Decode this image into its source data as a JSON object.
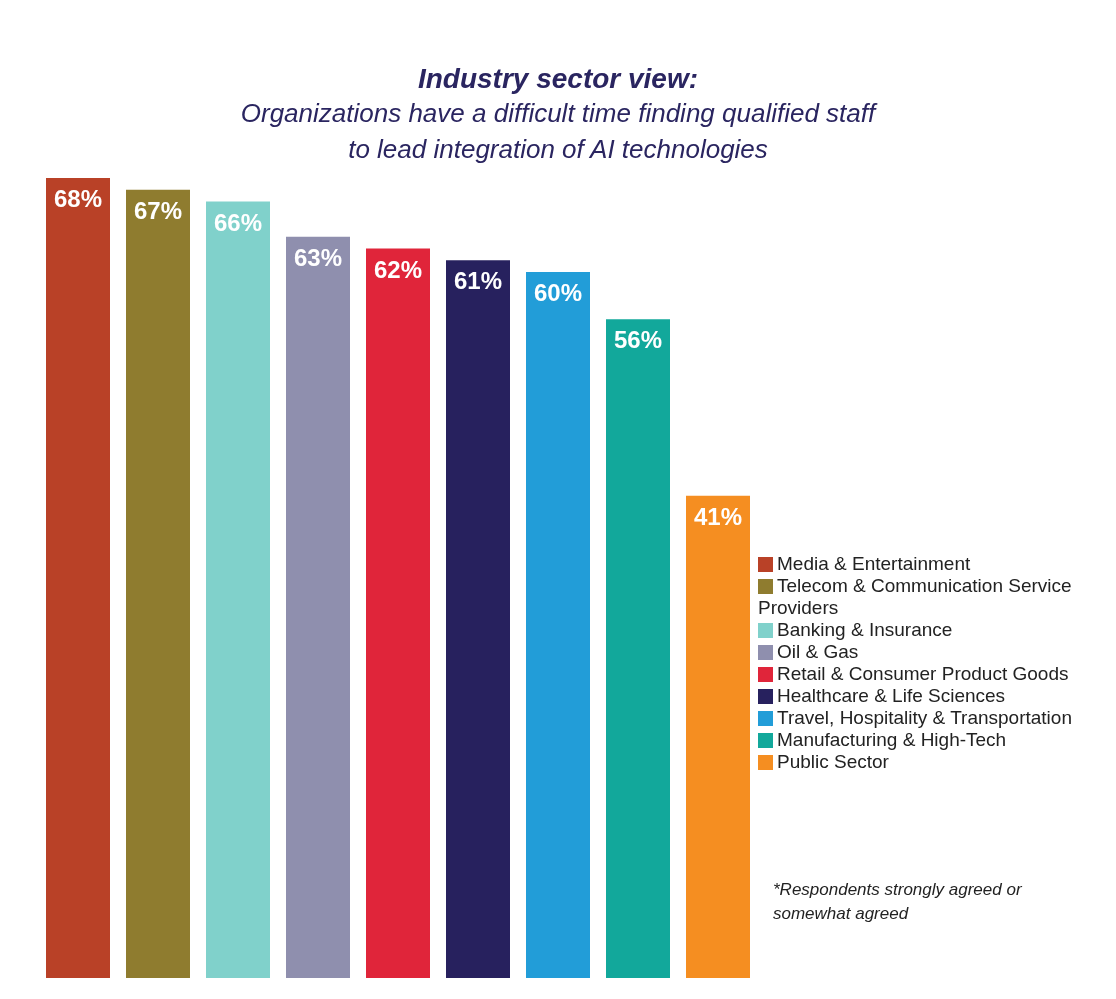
{
  "chart_data": {
    "type": "bar",
    "title": "Industry sector view:",
    "subtitle": "Organizations have a difficult time finding qualified staff to lead integration of AI technologies",
    "categories": [
      null,
      null,
      null,
      null,
      null,
      null,
      null,
      null,
      null
    ],
    "stacked": true,
    "series": [
      {
        "name": "Media & Entertainment",
        "color": "#b94127",
        "values": [
          68,
          null,
          null,
          null,
          null,
          null,
          null,
          null,
          null
        ],
        "value_labels": [
          "68%",
          null,
          null,
          null,
          null,
          null,
          null,
          null,
          null
        ]
      },
      {
        "name": "Telecom & Communication Service Providers",
        "color": "#8f7c2f",
        "values": [
          null,
          67,
          null,
          null,
          null,
          null,
          null,
          null,
          null
        ],
        "value_labels": [
          null,
          "67%",
          null,
          null,
          null,
          null,
          null,
          null,
          null
        ]
      },
      {
        "name": "Banking & Insurance",
        "color": "#80d1cb",
        "values": [
          null,
          null,
          66,
          null,
          null,
          null,
          null,
          null,
          null
        ],
        "value_labels": [
          null,
          null,
          "66%",
          null,
          null,
          null,
          null,
          null,
          null
        ]
      },
      {
        "name": "Oil & Gas",
        "color": "#8f8fae",
        "values": [
          null,
          null,
          null,
          63,
          null,
          null,
          null,
          null,
          null
        ],
        "value_labels": [
          null,
          null,
          null,
          "63%",
          null,
          null,
          null,
          null,
          null
        ]
      },
      {
        "name": "Retail & Consumer Product Goods",
        "color": "#e0253a",
        "values": [
          null,
          null,
          null,
          null,
          62,
          null,
          null,
          null,
          null
        ],
        "value_labels": [
          null,
          null,
          null,
          null,
          "62%",
          null,
          null,
          null,
          null
        ]
      },
      {
        "name": "Healthcare & Life Sciences",
        "color": "#27215e",
        "values": [
          null,
          null,
          null,
          null,
          null,
          61,
          null,
          null,
          null
        ],
        "value_labels": [
          null,
          null,
          null,
          null,
          null,
          "61%",
          null,
          null,
          null
        ]
      },
      {
        "name": "Travel, Hospitality & Transportation",
        "color": "#229dd8",
        "values": [
          null,
          null,
          null,
          null,
          null,
          null,
          60,
          null,
          null
        ],
        "value_labels": [
          null,
          null,
          null,
          null,
          null,
          null,
          "60%",
          null,
          null
        ]
      },
      {
        "name": "Manufacturing & High-Tech",
        "color": "#12a89b",
        "values": [
          null,
          null,
          null,
          null,
          null,
          null,
          null,
          56,
          null
        ],
        "value_labels": [
          null,
          null,
          null,
          null,
          null,
          null,
          null,
          "56%",
          null
        ]
      },
      {
        "name": "Public Sector",
        "color": "#f58e21",
        "values": [
          null,
          null,
          null,
          null,
          null,
          null,
          null,
          null,
          41
        ],
        "value_labels": [
          null,
          null,
          null,
          null,
          null,
          null,
          null,
          null,
          "41%"
        ]
      }
    ],
    "legend": "right",
    "tick_labels": false,
    "annotations": [
      "*Respondents strongly agreed or somewhat agreed"
    ]
  }
}
